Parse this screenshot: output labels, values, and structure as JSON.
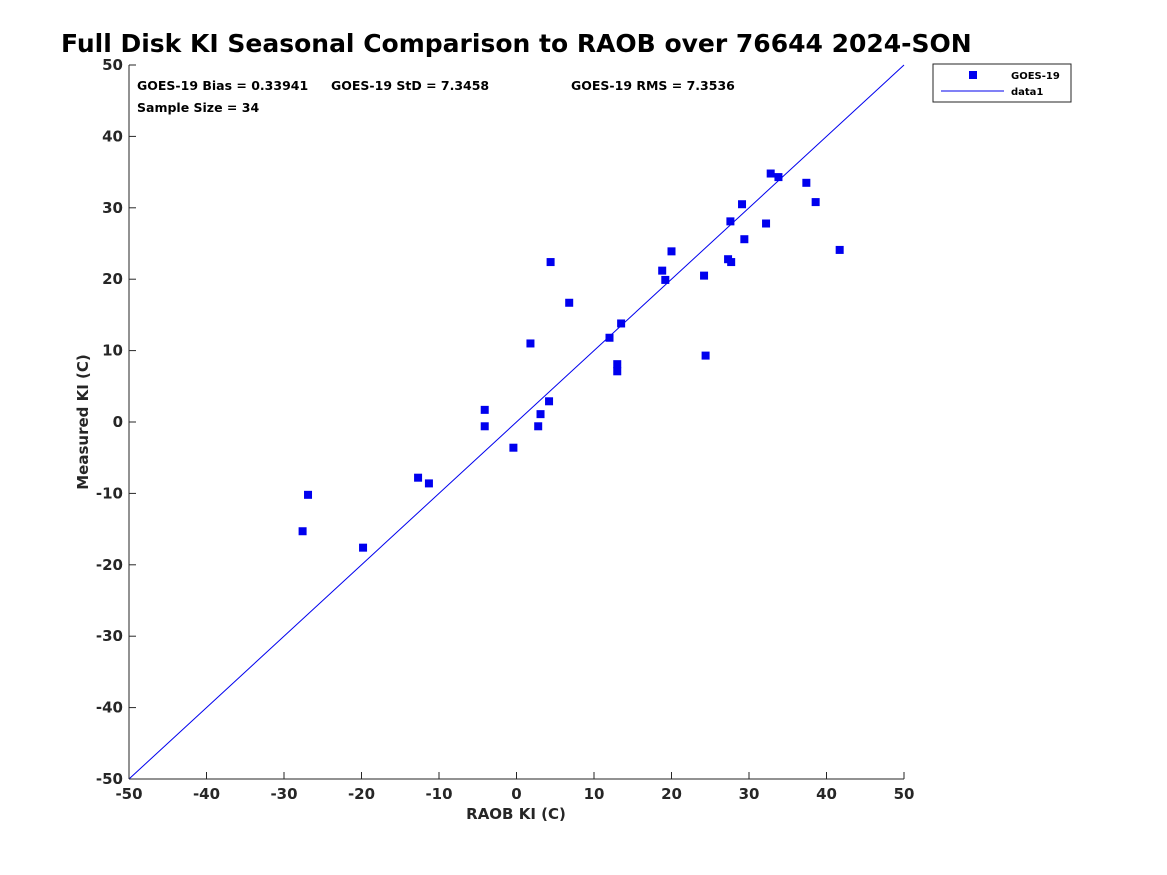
{
  "chart_data": {
    "type": "scatter",
    "title": "Full Disk KI Seasonal Comparison to RAOB over 76644 2024-SON",
    "xlabel": "RAOB KI (C)",
    "ylabel": "Measured KI (C)",
    "xlim": [
      -50,
      50
    ],
    "ylim": [
      -50,
      50
    ],
    "xticks": [
      -50,
      -40,
      -30,
      -20,
      -10,
      0,
      10,
      20,
      30,
      40,
      50
    ],
    "yticks": [
      -50,
      -40,
      -30,
      -20,
      -10,
      0,
      10,
      20,
      30,
      40,
      50
    ],
    "grid": false,
    "legend_position": "top-right outside",
    "stats": {
      "bias": "GOES-19 Bias = 0.33941",
      "std": "GOES-19 StD = 7.3458",
      "rms": "GOES-19 RMS = 7.3536",
      "sample": "Sample Size = 34"
    },
    "series": [
      {
        "name": "GOES-19",
        "marker": "square",
        "color": "#0000ee",
        "x": [
          -27.6,
          -26.9,
          -19.8,
          -12.7,
          -11.3,
          -4.1,
          -4.1,
          -0.4,
          1.8,
          2.8,
          3.1,
          4.2,
          4.4,
          6.8,
          12.0,
          13.0,
          13.0,
          13.5,
          18.8,
          19.2,
          20.0,
          24.2,
          24.4,
          27.3,
          27.6,
          27.7,
          29.1,
          29.4,
          32.2,
          32.8,
          33.8,
          37.4,
          38.6,
          41.7
        ],
        "y": [
          -15.3,
          -10.2,
          -17.6,
          -7.8,
          -8.6,
          1.7,
          -0.6,
          -3.6,
          11.0,
          -0.6,
          1.1,
          2.9,
          22.4,
          16.7,
          11.8,
          8.1,
          7.1,
          13.8,
          21.2,
          19.9,
          23.9,
          20.5,
          9.3,
          22.8,
          28.1,
          22.4,
          30.5,
          25.6,
          27.8,
          34.8,
          34.3,
          33.5,
          30.8,
          24.1
        ]
      },
      {
        "name": "data1",
        "type": "line",
        "color": "#0000ee",
        "x": [
          -50,
          50
        ],
        "y": [
          -50,
          50
        ]
      }
    ]
  }
}
